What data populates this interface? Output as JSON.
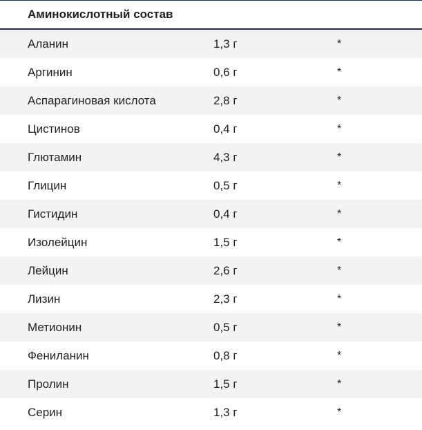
{
  "table": {
    "title": "Аминокислотный состав",
    "rows": [
      {
        "name": "Аланин",
        "amount": "1,3 г",
        "mark": "*"
      },
      {
        "name": "Аргинин",
        "amount": "0,6 г",
        "mark": "*"
      },
      {
        "name": "Аспарагиновая кислота",
        "amount": "2,8 г",
        "mark": "*"
      },
      {
        "name": "Цистинов",
        "amount": "0,4 г",
        "mark": "*"
      },
      {
        "name": "Глютамин",
        "amount": "4,3 г",
        "mark": "*"
      },
      {
        "name": "Глицин",
        "amount": "0,5 г",
        "mark": "*"
      },
      {
        "name": "Гистидин",
        "amount": "0,4 г",
        "mark": "*"
      },
      {
        "name": "Изолейцин",
        "amount": "1,5 г",
        "mark": "*"
      },
      {
        "name": "Лейцин",
        "amount": "2,6 г",
        "mark": "*"
      },
      {
        "name": "Лизин",
        "amount": "2,3 г",
        "mark": "*"
      },
      {
        "name": "Метионин",
        "amount": "0,5 г",
        "mark": "*"
      },
      {
        "name": "Фениланин",
        "amount": "0,8 г",
        "mark": "*"
      },
      {
        "name": "Пролин",
        "amount": "1,5 г",
        "mark": "*"
      },
      {
        "name": "Серин",
        "amount": "1,3 г",
        "mark": "*"
      }
    ]
  }
}
